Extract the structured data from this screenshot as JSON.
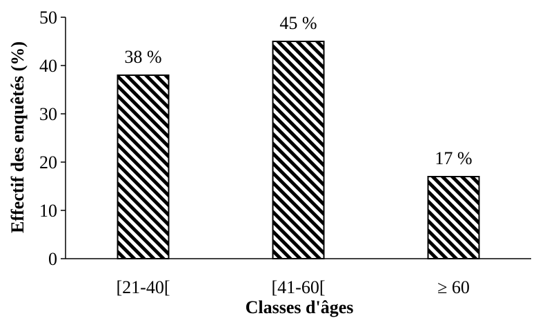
{
  "chart_data": {
    "type": "bar",
    "title": "",
    "xlabel": "Classes d'âges",
    "ylabel": "Effectif des enquêtés (%)",
    "categories": [
      "[21-40[",
      "[41-60[",
      "≥ 60"
    ],
    "values": [
      38,
      45,
      17
    ],
    "data_labels": [
      "38 %",
      "45 %",
      "17 %"
    ],
    "ylim": [
      0,
      50
    ],
    "yticks": [
      0,
      10,
      20,
      30,
      40,
      50
    ],
    "grid": false,
    "legend": "none",
    "bar_fill": "diagonal-hatch",
    "colors": {
      "bar_stroke": "#000000",
      "hatch": "#000000",
      "background": "#ffffff"
    }
  }
}
